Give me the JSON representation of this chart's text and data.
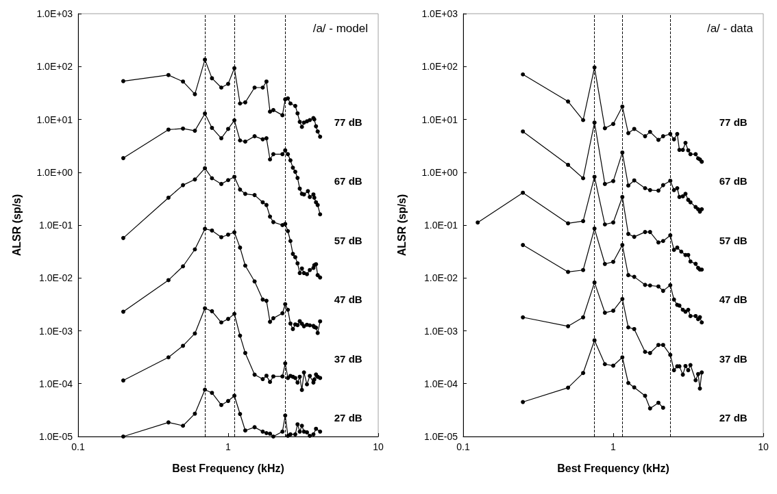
{
  "chart_data": [
    {
      "type": "line",
      "title": "/a/ - model",
      "xlabel": "Best Frequency (kHz)",
      "ylabel": "ALSR (sp/s)",
      "log": "xy",
      "grid": false,
      "marker": "circle",
      "line_style": "solid",
      "xlim": [
        0.1,
        10
      ],
      "xticks": [
        0.1,
        1,
        10
      ],
      "ylim": [
        1e-05,
        1000
      ],
      "yticks": [
        {
          "value": 1e-05,
          "label": "1.0E-05"
        },
        {
          "value": 0.0001,
          "label": "1.0E-04"
        },
        {
          "value": 0.001,
          "label": "1.0E-03"
        },
        {
          "value": 0.01,
          "label": "1.0E-02"
        },
        {
          "value": 0.1,
          "label": "1.0E-01"
        },
        {
          "value": 1,
          "label": "1.0E+00"
        },
        {
          "value": 10,
          "label": "1.0E+01"
        },
        {
          "value": 100,
          "label": "1.0E+02"
        },
        {
          "value": 1000,
          "label": "1.0E+03"
        }
      ],
      "ref_lines": [
        {
          "axis": "x",
          "value": 0.7,
          "label": null,
          "color": "#000000",
          "line_style": "dashed"
        },
        {
          "axis": "x",
          "value": 1.1,
          "label": null,
          "color": "#000000",
          "line_style": "dashed"
        },
        {
          "axis": "x",
          "value": 2.4,
          "label": null,
          "color": "#000000",
          "line_style": "dashed"
        }
      ],
      "series": [
        {
          "name": "77 dB",
          "color": "#000000",
          "x": [
            0.2,
            0.4,
            0.5,
            0.6,
            0.7,
            0.78,
            0.9,
            1.0,
            1.1,
            1.2,
            1.3,
            1.5,
            1.7,
            1.8,
            1.9,
            2.0,
            2.3,
            2.4,
            2.5,
            2.6,
            2.8,
            2.9,
            3.0,
            3.1,
            3.2,
            3.35,
            3.5,
            3.7,
            3.75,
            3.85,
            3.95,
            4.1
          ],
          "values": [
            53,
            69,
            52,
            30,
            135,
            60,
            40,
            47,
            93,
            20,
            21,
            40,
            40,
            52,
            14,
            15,
            12,
            24,
            25,
            20,
            18,
            13,
            9,
            7.2,
            8.7,
            9.2,
            9.7,
            10.6,
            10,
            7.4,
            5.9,
            4.7
          ]
        },
        {
          "name": "67 dB",
          "color": "#000000",
          "x": [
            0.2,
            0.4,
            0.5,
            0.6,
            0.7,
            0.78,
            0.9,
            1.0,
            1.1,
            1.2,
            1.3,
            1.5,
            1.7,
            1.8,
            1.9,
            2.0,
            2.3,
            2.4,
            2.5,
            2.6,
            2.7,
            2.8,
            2.9,
            3.0,
            3.1,
            3.2,
            3.4,
            3.5,
            3.7,
            3.75,
            3.85,
            3.95,
            4.1
          ],
          "values": [
            1.85,
            6.4,
            6.7,
            6.1,
            12.9,
            6.9,
            4.4,
            6.6,
            9.6,
            4.0,
            3.8,
            4.8,
            4.2,
            4.4,
            1.75,
            2.2,
            2.2,
            2.6,
            2.2,
            1.68,
            1.22,
            1.02,
            0.78,
            0.49,
            0.39,
            0.38,
            0.44,
            0.34,
            0.38,
            0.33,
            0.27,
            0.24,
            0.16
          ]
        },
        {
          "name": "57 dB",
          "color": "#000000",
          "x": [
            0.2,
            0.4,
            0.5,
            0.6,
            0.7,
            0.78,
            0.9,
            1.0,
            1.1,
            1.2,
            1.3,
            1.5,
            1.7,
            1.8,
            1.9,
            2.0,
            2.3,
            2.4,
            2.5,
            2.6,
            2.7,
            2.8,
            2.9,
            3.0,
            3.1,
            3.2,
            3.35,
            3.5,
            3.7,
            3.75,
            3.85,
            3.95,
            4.1
          ],
          "values": [
            0.057,
            0.33,
            0.57,
            0.73,
            1.19,
            0.77,
            0.6,
            0.71,
            0.82,
            0.47,
            0.39,
            0.37,
            0.27,
            0.24,
            0.145,
            0.114,
            0.1,
            0.105,
            0.077,
            0.05,
            0.0285,
            0.0247,
            0.0189,
            0.0124,
            0.0151,
            0.0124,
            0.0118,
            0.0141,
            0.0155,
            0.0175,
            0.0182,
            0.0113,
            0.0102
          ]
        },
        {
          "name": "47 dB",
          "color": "#000000",
          "x": [
            0.2,
            0.4,
            0.5,
            0.6,
            0.7,
            0.78,
            0.9,
            1.0,
            1.1,
            1.2,
            1.3,
            1.5,
            1.7,
            1.8,
            1.9,
            2.0,
            2.3,
            2.4,
            2.5,
            2.6,
            2.7,
            2.8,
            2.9,
            3.0,
            3.1,
            3.2,
            3.35,
            3.5,
            3.7,
            3.75,
            3.85,
            3.95,
            4.1
          ],
          "values": [
            0.0023,
            0.0091,
            0.0166,
            0.0347,
            0.085,
            0.079,
            0.059,
            0.066,
            0.073,
            0.0375,
            0.0171,
            0.0086,
            0.0039,
            0.0037,
            0.00148,
            0.00173,
            0.00215,
            0.0032,
            0.0025,
            0.00137,
            0.00108,
            0.00132,
            0.00128,
            0.00152,
            0.00136,
            0.00122,
            0.0013,
            0.00127,
            0.00124,
            0.00118,
            0.00115,
            0.00091,
            0.00151
          ]
        },
        {
          "name": "37 dB",
          "color": "#000000",
          "x": [
            0.2,
            0.4,
            0.5,
            0.6,
            0.7,
            0.78,
            0.9,
            1.0,
            1.1,
            1.2,
            1.3,
            1.5,
            1.7,
            1.8,
            1.9,
            2.0,
            2.3,
            2.4,
            2.5,
            2.6,
            2.7,
            2.8,
            2.9,
            3.0,
            3.1,
            3.2,
            3.35,
            3.5,
            3.7,
            3.75,
            3.85,
            3.95,
            4.1
          ],
          "values": [
            0.000115,
            0.000315,
            0.00052,
            0.00089,
            0.00267,
            0.00235,
            0.00144,
            0.00168,
            0.00209,
            0.00081,
            0.00038,
            0.000148,
            0.000122,
            0.000141,
            0.000108,
            0.000137,
            0.000137,
            0.000242,
            0.000128,
            0.00014,
            0.000135,
            0.000128,
            0.000105,
            0.000135,
            7.6e-05,
            0.000163,
            9.7e-05,
            0.00014,
            0.000105,
            0.00012,
            0.000149,
            0.000135,
            0.000128
          ]
        },
        {
          "name": "27 dB",
          "color": "#000000",
          "x": [
            0.2,
            0.4,
            0.5,
            0.6,
            0.7,
            0.78,
            0.9,
            1.0,
            1.1,
            1.2,
            1.3,
            1.5,
            1.7,
            1.8,
            1.9,
            2.0,
            2.3,
            2.4,
            2.5,
            2.6,
            2.8,
            2.9,
            3.0,
            3.1,
            3.2,
            3.35,
            3.5,
            3.7,
            3.85,
            4.1
          ],
          "values": [
            1e-05,
            1.85e-05,
            1.6e-05,
            2.7e-05,
            7.7e-05,
            6.7e-05,
            3.95e-05,
            4.7e-05,
            5.9e-05,
            2.67e-05,
            1.3e-05,
            1.5e-05,
            1.24e-05,
            1.16e-05,
            1.13e-05,
            1e-05,
            1.24e-05,
            2.5e-05,
            1.03e-05,
            1.1e-05,
            1.1e-05,
            1.7e-05,
            1.24e-05,
            1.6e-05,
            1.24e-05,
            1.2e-05,
            1.03e-05,
            1.1e-05,
            1.4e-05,
            1.24e-05
          ]
        }
      ]
    },
    {
      "type": "line",
      "title": "/a/ - data",
      "xlabel": "Best Frequency (kHz)",
      "ylabel": "ALSR (sp/s)",
      "log": "xy",
      "grid": false,
      "marker": "circle",
      "line_style": "solid",
      "xlim": [
        0.1,
        10
      ],
      "xticks": [
        0.1,
        1,
        10
      ],
      "ylim": [
        1e-05,
        1000
      ],
      "yticks": [
        {
          "value": 1e-05,
          "label": "1.0E-05"
        },
        {
          "value": 0.0001,
          "label": "1.0E-04"
        },
        {
          "value": 0.001,
          "label": "1.0E-03"
        },
        {
          "value": 0.01,
          "label": "1.0E-02"
        },
        {
          "value": 0.1,
          "label": "1.0E-01"
        },
        {
          "value": 1,
          "label": "1.0E+00"
        },
        {
          "value": 10,
          "label": "1.0E+01"
        },
        {
          "value": 100,
          "label": "1.0E+02"
        },
        {
          "value": 1000,
          "label": "1.0E+03"
        }
      ],
      "ref_lines": [
        {
          "axis": "x",
          "value": 0.75,
          "label": null,
          "color": "#000000",
          "line_style": "dashed"
        },
        {
          "axis": "x",
          "value": 1.15,
          "label": null,
          "color": "#000000",
          "line_style": "dashed"
        },
        {
          "axis": "x",
          "value": 2.4,
          "label": null,
          "color": "#000000",
          "line_style": "dashed"
        }
      ],
      "series": [
        {
          "name": "77 dB",
          "color": "#000000",
          "x": [
            0.25,
            0.5,
            0.63,
            0.75,
            0.88,
            1.0,
            1.15,
            1.26,
            1.38,
            1.63,
            1.76,
            2.0,
            2.15,
            2.4,
            2.54,
            2.67,
            2.76,
            2.91,
            3.03,
            3.16,
            3.27,
            3.54,
            3.68,
            3.78,
            3.89
          ],
          "values": [
            71,
            21.8,
            9.7,
            96,
            6.8,
            8.2,
            17.5,
            5.5,
            6.6,
            4.8,
            5.8,
            4.1,
            4.8,
            5.3,
            4.2,
            5.3,
            2.65,
            2.65,
            3.6,
            2.6,
            2.2,
            2.2,
            1.83,
            1.75,
            1.58
          ]
        },
        {
          "name": "67 dB",
          "color": "#000000",
          "x": [
            0.25,
            0.5,
            0.63,
            0.75,
            0.88,
            1.0,
            1.15,
            1.26,
            1.38,
            1.63,
            1.76,
            2.0,
            2.15,
            2.4,
            2.54,
            2.67,
            2.76,
            2.91,
            3.03,
            3.16,
            3.27,
            3.54,
            3.68,
            3.78,
            3.89
          ],
          "values": [
            5.9,
            1.38,
            0.77,
            8.7,
            0.6,
            0.68,
            2.36,
            0.56,
            0.7,
            0.5,
            0.46,
            0.45,
            0.57,
            0.69,
            0.46,
            0.5,
            0.34,
            0.35,
            0.39,
            0.3,
            0.27,
            0.22,
            0.2,
            0.18,
            0.2
          ]
        },
        {
          "name": "57 dB",
          "color": "#000000",
          "x": [
            0.125,
            0.25,
            0.5,
            0.63,
            0.75,
            0.88,
            1.0,
            1.15,
            1.26,
            1.38,
            1.63,
            1.76,
            2.0,
            2.15,
            2.4,
            2.54,
            2.67,
            2.84,
            3.03,
            3.16,
            3.27,
            3.54,
            3.68,
            3.78,
            3.89
          ],
          "values": [
            0.112,
            0.41,
            0.108,
            0.119,
            0.82,
            0.103,
            0.112,
            0.34,
            0.068,
            0.06,
            0.074,
            0.074,
            0.047,
            0.05,
            0.064,
            0.034,
            0.0375,
            0.0315,
            0.0272,
            0.0272,
            0.0205,
            0.0185,
            0.0155,
            0.0144,
            0.0144
          ]
        },
        {
          "name": "47 dB",
          "color": "#000000",
          "x": [
            0.25,
            0.5,
            0.63,
            0.75,
            0.88,
            1.0,
            1.15,
            1.26,
            1.38,
            1.63,
            1.76,
            2.0,
            2.15,
            2.4,
            2.54,
            2.67,
            2.76,
            2.91,
            3.03,
            3.16,
            3.27,
            3.54,
            3.68,
            3.78,
            3.89
          ],
          "values": [
            0.042,
            0.013,
            0.0141,
            0.086,
            0.0184,
            0.0202,
            0.042,
            0.0113,
            0.0105,
            0.0074,
            0.0072,
            0.0069,
            0.0057,
            0.0073,
            0.0039,
            0.0031,
            0.003,
            0.0025,
            0.0023,
            0.0025,
            0.0019,
            0.0019,
            0.00166,
            0.00181,
            0.00144
          ]
        },
        {
          "name": "37 dB",
          "color": "#000000",
          "x": [
            0.25,
            0.5,
            0.63,
            0.75,
            0.88,
            1.0,
            1.15,
            1.26,
            1.38,
            1.63,
            1.76,
            2.0,
            2.15,
            2.4,
            2.54,
            2.67,
            2.76,
            2.91,
            3.03,
            3.16,
            3.27,
            3.54,
            3.68,
            3.78,
            3.89
          ],
          "values": [
            0.0018,
            0.00122,
            0.0018,
            0.0082,
            0.0022,
            0.0024,
            0.004,
            0.00116,
            0.00108,
            0.0004,
            0.00038,
            0.00054,
            0.00054,
            0.00035,
            0.00018,
            0.000213,
            0.000213,
            0.000148,
            0.000216,
            0.00018,
            0.000225,
            0.000116,
            0.000152,
            8.1e-05,
            0.000163
          ]
        },
        {
          "name": "27 dB",
          "color": "#000000",
          "x": [
            0.25,
            0.5,
            0.63,
            0.75,
            0.88,
            1.0,
            1.15,
            1.26,
            1.38,
            1.63,
            1.76,
            2.0,
            2.15
          ],
          "values": [
            4.5e-05,
            8.4e-05,
            0.000159,
            0.00066,
            0.000234,
            0.000219,
            0.000315,
            0.000103,
            8.5e-05,
            5.9e-05,
            3.4e-05,
            4.35e-05,
            3.5e-05
          ]
        }
      ]
    }
  ]
}
